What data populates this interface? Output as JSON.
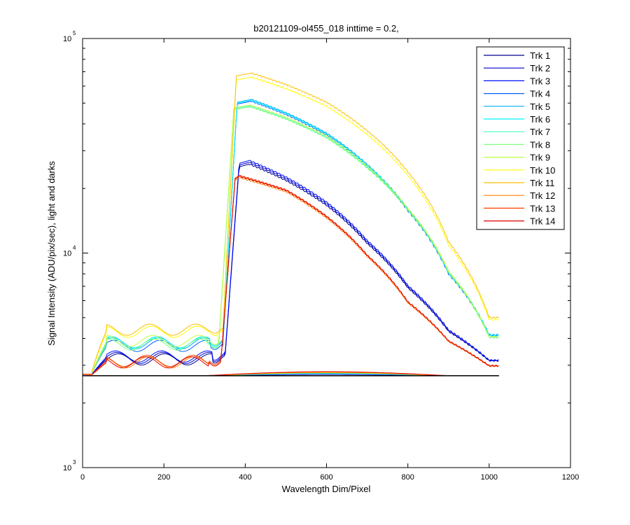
{
  "chart_data": {
    "type": "line",
    "title": "b20121109-ol455_018 inttime = 0.2,",
    "xlabel": "Wavelength Dim/Pixel",
    "ylabel": "Signal Intensity (ADU/pix/sec), light and darks",
    "xlim": [
      0,
      1200
    ],
    "ylim": [
      1000,
      100000
    ],
    "yscale": "log",
    "grid": false,
    "legend_position": "top-right",
    "x_ticks": [
      {
        "value": 0,
        "label": "0"
      },
      {
        "value": 200,
        "label": "200"
      },
      {
        "value": 400,
        "label": "400"
      },
      {
        "value": 600,
        "label": "600"
      },
      {
        "value": 800,
        "label": "800"
      },
      {
        "value": 1000,
        "label": "1000"
      },
      {
        "value": 1200,
        "label": "1200"
      }
    ],
    "y_ticks": [
      {
        "value": 1000,
        "base": "10",
        "exp": "3"
      },
      {
        "value": 10000,
        "base": "10",
        "exp": "4"
      },
      {
        "value": 100000,
        "base": "10",
        "exp": "5"
      }
    ],
    "dark_level": 2680,
    "series": [
      {
        "name": "Trk 1",
        "color": "#00008f",
        "profile": "low",
        "plateau": 3200,
        "peak": 26000
      },
      {
        "name": "Trk 2",
        "color": "#0000cf",
        "profile": "low",
        "plateau": 3250,
        "peak": 26500
      },
      {
        "name": "Trk 3",
        "color": "#0010ff",
        "profile": "low",
        "plateau": 3300,
        "peak": 27000
      },
      {
        "name": "Trk 4",
        "color": "#0060ff",
        "profile": "mid",
        "plateau": 3700,
        "peak": 51000
      },
      {
        "name": "Trk 5",
        "color": "#00afff",
        "profile": "mid",
        "plateau": 3800,
        "peak": 52000
      },
      {
        "name": "Trk 6",
        "color": "#00efff",
        "profile": "mid",
        "plateau": 3850,
        "peak": 51500
      },
      {
        "name": "Trk 7",
        "color": "#40ffbf",
        "profile": "mid2",
        "plateau": 3800,
        "peak": 48500
      },
      {
        "name": "Trk 8",
        "color": "#80ff80",
        "profile": "mid2",
        "plateau": 3750,
        "peak": 48000
      },
      {
        "name": "Trk 9",
        "color": "#bfff40",
        "profile": "mid2",
        "plateau": 3900,
        "peak": 49000
      },
      {
        "name": "Trk 10",
        "color": "#ffff00",
        "profile": "high",
        "plateau": 4300,
        "peak": 66000
      },
      {
        "name": "Trk 11",
        "color": "#ffbf00",
        "profile": "high",
        "plateau": 4400,
        "peak": 69000
      },
      {
        "name": "Trk 12",
        "color": "#ff8000",
        "profile": "red",
        "plateau": 3100,
        "peak": 22500
      },
      {
        "name": "Trk 13",
        "color": "#ff4000",
        "profile": "red",
        "plateau": 3150,
        "peak": 23000
      },
      {
        "name": "Trk 14",
        "color": "#df0000",
        "profile": "red",
        "plateau": 3100,
        "peak": 22800
      }
    ]
  }
}
